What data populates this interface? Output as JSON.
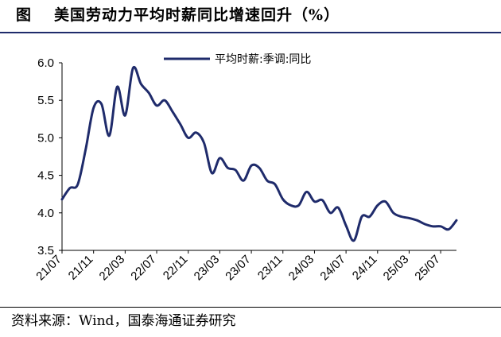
{
  "header": {
    "figure_label": "图",
    "title": "美国劳动力平均时薪同比增速回升（%）"
  },
  "footer": {
    "source": "资料来源：Wind，国泰海通证券研究"
  },
  "chart_data": {
    "type": "line",
    "y_ticks": [
      "6.0",
      "5.5",
      "5.0",
      "4.5",
      "4.0",
      "3.5"
    ],
    "ylim": [
      3.5,
      6.0
    ],
    "x_ticks": [
      "21/07",
      "21/11",
      "22/03",
      "22/07",
      "22/11",
      "23/03",
      "23/07",
      "23/11",
      "24/03",
      "24/07",
      "24/11",
      "25/03",
      "25/07"
    ],
    "legend_position": "top",
    "grid": false,
    "series": [
      {
        "name": "平均时薪:季调:同比",
        "color": "#1f2b6b",
        "values": [
          4.18,
          4.33,
          4.38,
          4.85,
          5.4,
          5.45,
          5.03,
          5.68,
          5.3,
          5.93,
          5.72,
          5.6,
          5.43,
          5.5,
          5.35,
          5.18,
          5.0,
          5.07,
          4.93,
          4.53,
          4.73,
          4.6,
          4.57,
          4.43,
          4.63,
          4.6,
          4.43,
          4.38,
          4.18,
          4.1,
          4.1,
          4.28,
          4.15,
          4.17,
          4.0,
          4.07,
          3.83,
          3.63,
          3.95,
          3.95,
          4.1,
          4.15,
          4.0,
          3.95,
          3.93,
          3.9,
          3.85,
          3.82,
          3.82,
          3.78,
          3.9
        ]
      }
    ]
  }
}
